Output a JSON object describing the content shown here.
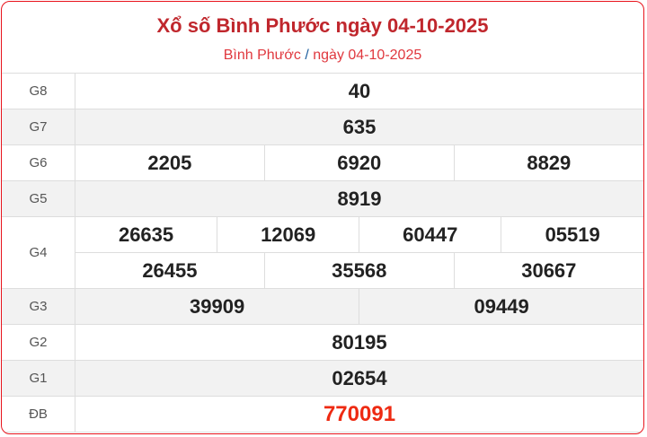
{
  "header": {
    "title": "Xổ số Bình Phước ngày 04-10-2025",
    "breadcrumb": [
      {
        "label": "Bình Phước"
      },
      {
        "label": "ngày 04-10-2025"
      }
    ],
    "separator": "/"
  },
  "prizes": [
    {
      "label": "G8",
      "numbers": [
        "40"
      ]
    },
    {
      "label": "G7",
      "numbers": [
        "635"
      ]
    },
    {
      "label": "G6",
      "numbers": [
        "2205",
        "6920",
        "8829"
      ]
    },
    {
      "label": "G5",
      "numbers": [
        "8919"
      ]
    },
    {
      "label": "G4",
      "numbers": [
        "26635",
        "12069",
        "60447",
        "05519",
        "26455",
        "35568",
        "30667"
      ]
    },
    {
      "label": "G3",
      "numbers": [
        "39909",
        "09449"
      ]
    },
    {
      "label": "G2",
      "numbers": [
        "80195"
      ]
    },
    {
      "label": "G1",
      "numbers": [
        "02654"
      ]
    },
    {
      "label": "ĐB",
      "numbers": [
        "770091"
      ]
    }
  ],
  "colors": {
    "accent": "#c0272d",
    "special": "#ee2a12",
    "border": "#e8131b"
  }
}
